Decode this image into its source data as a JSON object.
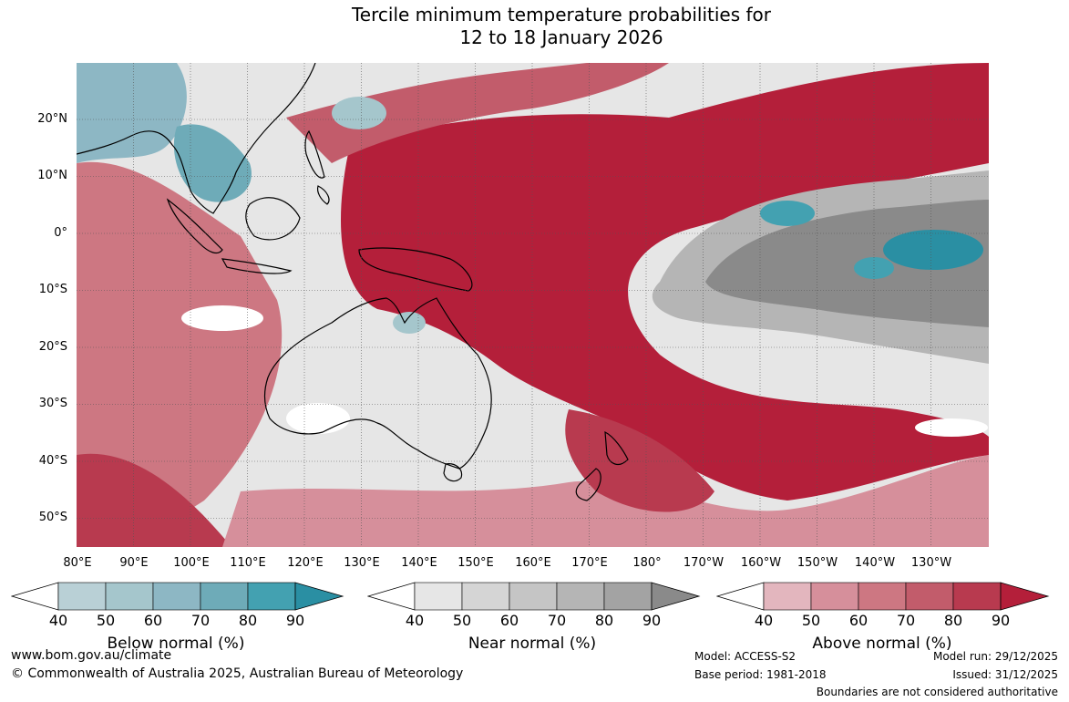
{
  "title": {
    "line1": "Tercile minimum temperature probabilities for",
    "line2": "12 to 18 January 2026"
  },
  "map": {
    "projection": "equirectangular",
    "lon_range": [
      "80°E",
      "130°W"
    ],
    "lat_range": [
      "30°N",
      "55°S"
    ],
    "graticule": true,
    "latitude_labels": [
      "20°N",
      "10°N",
      "0°",
      "10°S",
      "20°S",
      "30°S",
      "40°S",
      "50°S"
    ],
    "longitude_labels": [
      "80°E",
      "90°E",
      "100°E",
      "110°E",
      "120°E",
      "130°E",
      "140°E",
      "150°E",
      "160°E",
      "170°E",
      "180°",
      "170°W",
      "160°W",
      "150°W",
      "140°W",
      "130°W"
    ],
    "colors": {
      "below": [
        "#b9d0d6",
        "#a5c6cc",
        "#8db7c4",
        "#6eabb8",
        "#43a1b1",
        "#2a8fa3"
      ],
      "near": [
        "#e6e6e6",
        "#d5d5d5",
        "#c5c5c5",
        "#b5b5b5",
        "#a3a3a3",
        "#8a8a8a"
      ],
      "above": [
        "#e3b6be",
        "#d68f9b",
        "#cd7782",
        "#c25c6b",
        "#b83a4f",
        "#b41f3a"
      ]
    }
  },
  "colorbars": {
    "ticks": [
      "40",
      "50",
      "60",
      "70",
      "80",
      "90"
    ],
    "below": {
      "title": "Below normal (%)"
    },
    "near": {
      "title": "Near normal (%)"
    },
    "above": {
      "title": "Above normal (%)"
    }
  },
  "footer": {
    "website": "www.bom.gov.au/climate",
    "copyright": "© Commonwealth of Australia 2025, Australian Bureau of Meteorology",
    "model": "Model: ACCESS-S2",
    "base_period": "Base period: 1981-2018",
    "model_run": "Model run: 29/12/2025",
    "issued": "Issued: 31/12/2025",
    "disclaimer": "Boundaries are not considered authoritative"
  }
}
